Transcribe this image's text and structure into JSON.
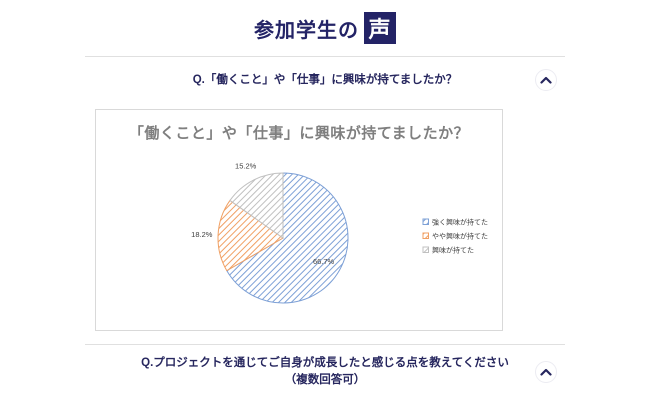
{
  "header": {
    "title_prefix": "参加学生の",
    "title_emphasis": "声"
  },
  "sections": [
    {
      "question": "Q.「働くこと」や「仕事」に興味が持てましたか？"
    },
    {
      "question_line1": "Q.プロジェクトを通じてご自身が成長したと感じる点を教えてください",
      "question_line2": "（複数回答可）"
    }
  ],
  "chart_data": {
    "type": "pie",
    "title": "「働くこと」や「仕事」に興味が持てましたか？",
    "slices": [
      {
        "label": "強く興味が持てた",
        "value": 66.7,
        "color": "#7da0d6"
      },
      {
        "label": "やや興味が持てた",
        "value": 18.2,
        "color": "#f0a064"
      },
      {
        "label": "興味が持てた",
        "value": 15.2,
        "color": "#c0c0c0"
      }
    ],
    "value_suffix": "%",
    "fill_style": "diagonal-hatch",
    "legend_position": "right",
    "start_angle_deg": 0,
    "direction": "clockwise"
  }
}
